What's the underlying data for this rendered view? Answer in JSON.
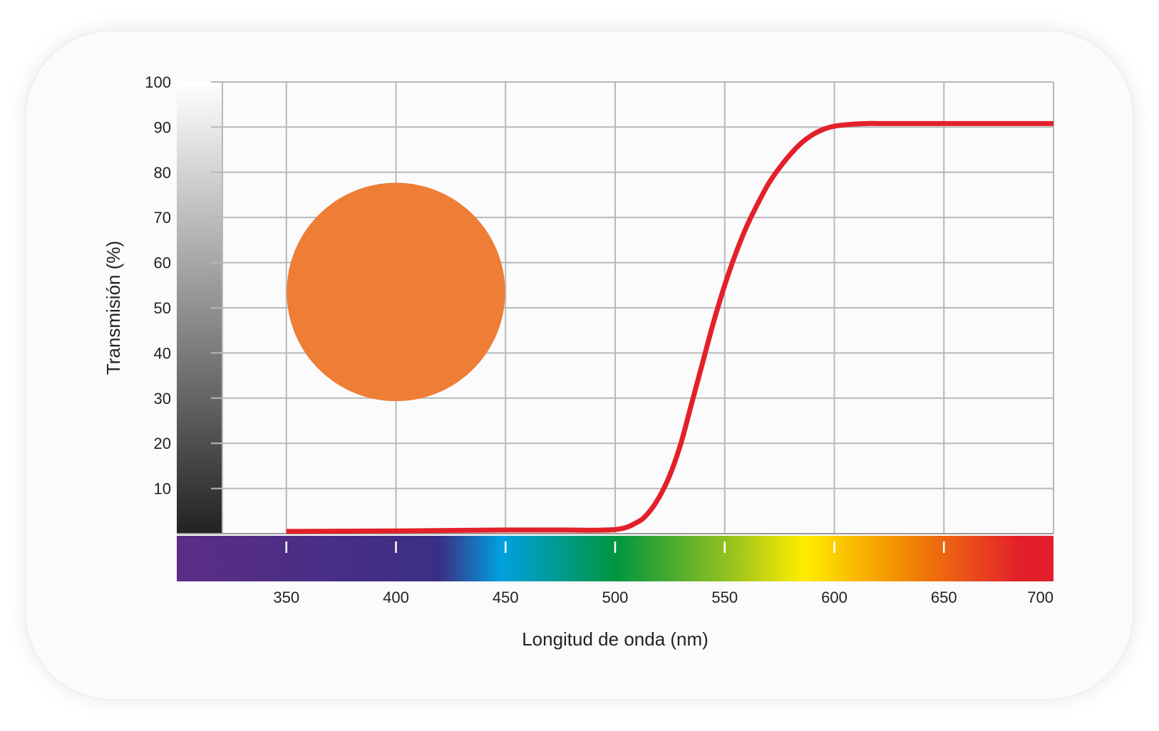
{
  "chart_data": {
    "type": "line",
    "xlabel": "Longitud de onda (nm)",
    "ylabel": "Transmisión (%)",
    "xlim": [
      300,
      700
    ],
    "ylim": [
      0,
      100
    ],
    "x_ticks": [
      "350",
      "400",
      "450",
      "500",
      "550",
      "600",
      "650",
      "700"
    ],
    "y_ticks": [
      "10",
      "20",
      "30",
      "40",
      "50",
      "60",
      "70",
      "80",
      "90",
      "100"
    ],
    "grid": true,
    "series": [
      {
        "color": "#e3202a",
        "x": [
          350,
          400,
          450,
          475,
          500,
          510,
          515,
          520,
          525,
          530,
          535,
          540,
          545,
          550,
          555,
          560,
          565,
          570,
          575,
          580,
          585,
          590,
          595,
          600,
          605,
          610,
          615,
          620,
          625,
          650,
          700
        ],
        "y": [
          0.5,
          0.6,
          0.8,
          0.8,
          0.9,
          2.5,
          4.5,
          8,
          13,
          20,
          29,
          38,
          47,
          55,
          62,
          68,
          73,
          77.5,
          81,
          84,
          86.5,
          88.3,
          89.5,
          90.2,
          90.5,
          90.7,
          90.8,
          90.8,
          90.8,
          90.8,
          90.8
        ]
      }
    ],
    "filter_swatch_color": "#ee7d36",
    "wavelength_band_colors": [
      "#5c2d86",
      "#3a2f84",
      "#00a0e0",
      "#009640",
      "#95c11f",
      "#ffed00",
      "#f39200",
      "#e3202a"
    ],
    "y_gradient_colors": [
      "#ffffff",
      "#222222"
    ]
  }
}
